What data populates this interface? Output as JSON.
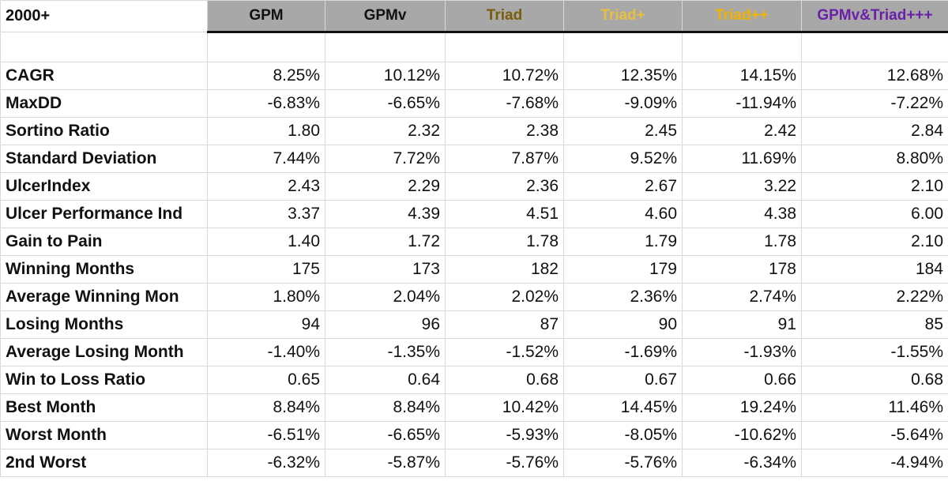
{
  "corner_label": "2000+",
  "columns": [
    {
      "label": "GPM",
      "color": "#111111"
    },
    {
      "label": "GPMv",
      "color": "#111111"
    },
    {
      "label": "Triad",
      "color": "#7a5c0a"
    },
    {
      "label": "Triad+",
      "color": "#e8c040"
    },
    {
      "label": "Triad++",
      "color": "#f0b400"
    },
    {
      "label": "GPMv&Triad+++",
      "color": "#6a1fa8"
    }
  ],
  "rows": [
    {
      "label": "CAGR",
      "values": [
        "8.25%",
        "10.12%",
        "10.72%",
        "12.35%",
        "14.15%",
        "12.68%"
      ]
    },
    {
      "label": "MaxDD",
      "values": [
        "-6.83%",
        "-6.65%",
        "-7.68%",
        "-9.09%",
        "-11.94%",
        "-7.22%"
      ]
    },
    {
      "label": "Sortino Ratio",
      "values": [
        "1.80",
        "2.32",
        "2.38",
        "2.45",
        "2.42",
        "2.84"
      ]
    },
    {
      "label": "Standard Deviation",
      "values": [
        "7.44%",
        "7.72%",
        "7.87%",
        "9.52%",
        "11.69%",
        "8.80%"
      ]
    },
    {
      "label": "UlcerIndex",
      "values": [
        "2.43",
        "2.29",
        "2.36",
        "2.67",
        "3.22",
        "2.10"
      ]
    },
    {
      "label": "Ulcer Performance Ind",
      "values": [
        "3.37",
        "4.39",
        "4.51",
        "4.60",
        "4.38",
        "6.00"
      ]
    },
    {
      "label": "Gain to Pain",
      "values": [
        "1.40",
        "1.72",
        "1.78",
        "1.79",
        "1.78",
        "2.10"
      ]
    },
    {
      "label": "Winning Months",
      "values": [
        "175",
        "173",
        "182",
        "179",
        "178",
        "184"
      ]
    },
    {
      "label": "Average Winning Mon",
      "values": [
        "1.80%",
        "2.04%",
        "2.02%",
        "2.36%",
        "2.74%",
        "2.22%"
      ]
    },
    {
      "label": "Losing Months",
      "values": [
        "94",
        "96",
        "87",
        "90",
        "91",
        "85"
      ]
    },
    {
      "label": "Average Losing Month",
      "values": [
        "-1.40%",
        "-1.35%",
        "-1.52%",
        "-1.69%",
        "-1.93%",
        "-1.55%"
      ]
    },
    {
      "label": "Win to Loss Ratio",
      "values": [
        "0.65",
        "0.64",
        "0.68",
        "0.67",
        "0.66",
        "0.68"
      ]
    },
    {
      "label": "Best Month",
      "values": [
        "8.84%",
        "8.84%",
        "10.42%",
        "14.45%",
        "19.24%",
        "11.46%"
      ]
    },
    {
      "label": "Worst Month",
      "values": [
        "-6.51%",
        "-6.65%",
        "-5.93%",
        "-8.05%",
        "-10.62%",
        "-5.64%"
      ]
    },
    {
      "label": "2nd Worst",
      "values": [
        "-6.32%",
        "-5.87%",
        "-5.76%",
        "-5.76%",
        "-6.34%",
        "-4.94%"
      ]
    }
  ]
}
